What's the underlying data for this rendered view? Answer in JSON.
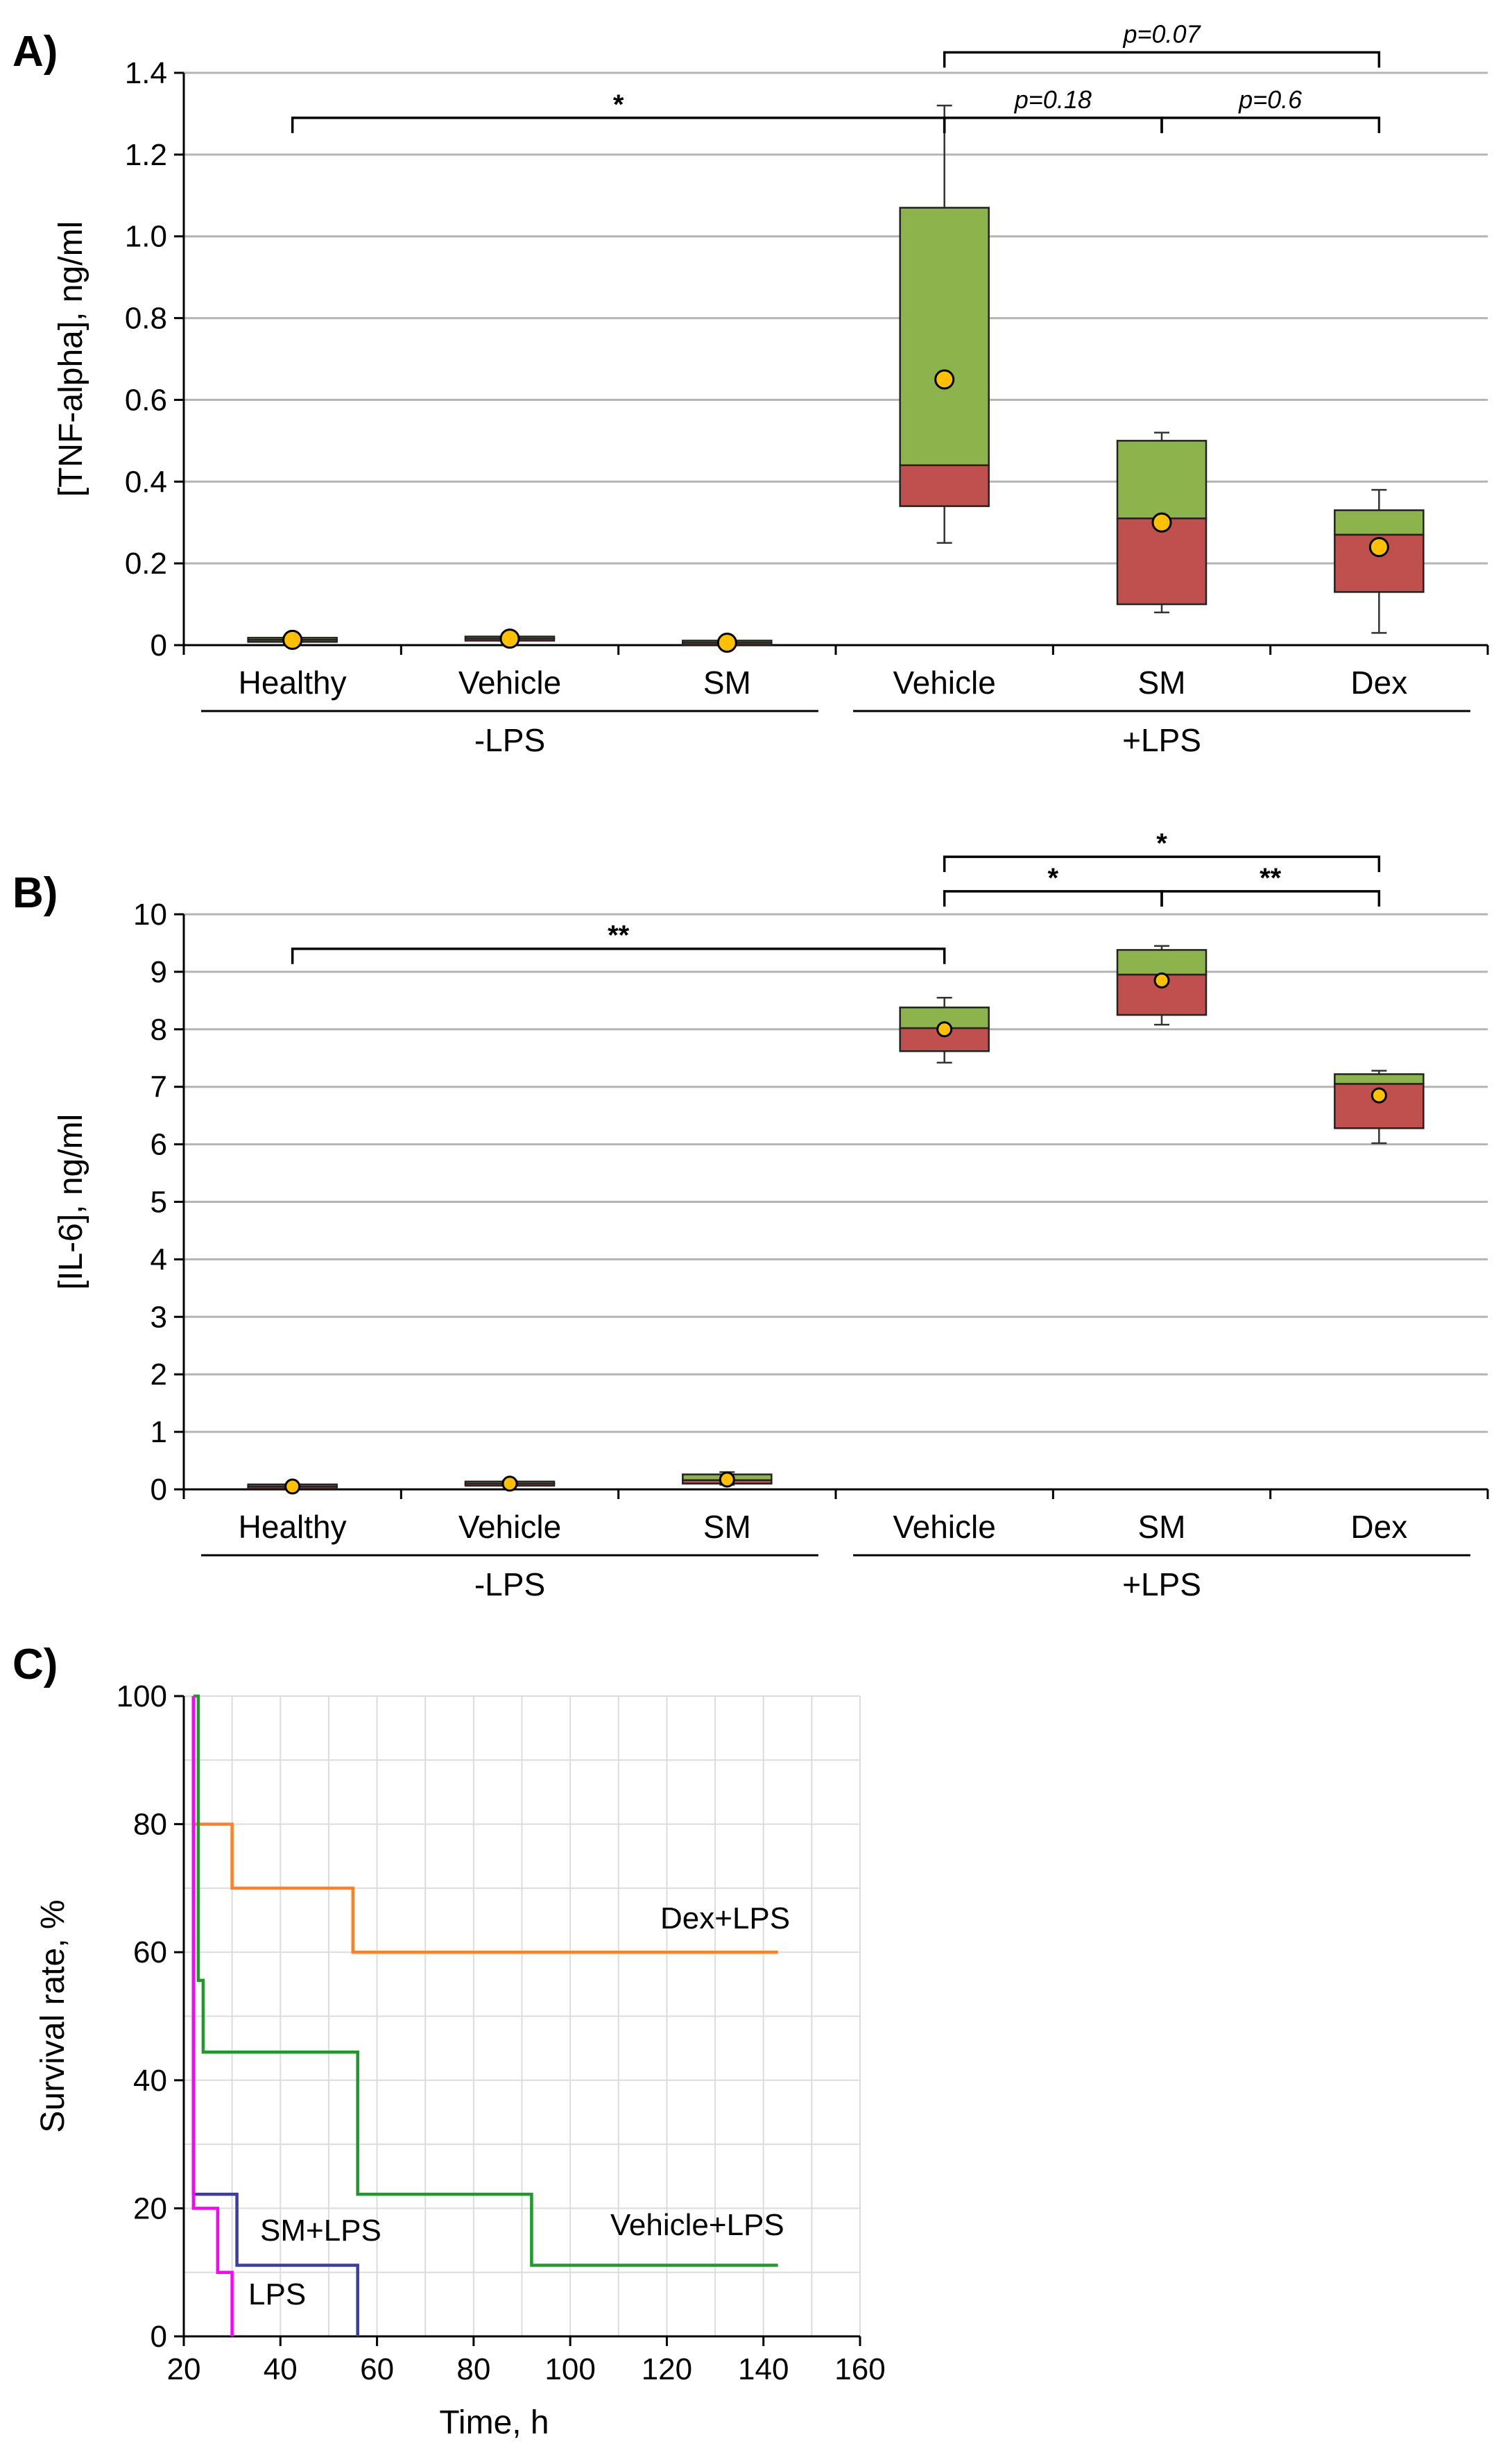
{
  "chart_data": [
    {
      "panel": "A)",
      "type": "box",
      "ylabel": "[TNF-alpha], ng/ml",
      "ylim": [
        0,
        1.4
      ],
      "yticks": [
        "0",
        "0.2",
        "0.4",
        "0.6",
        "0.8",
        "1.0",
        "1.2",
        "1.4"
      ],
      "categories": [
        "Healthy",
        "Vehicle",
        "SM",
        "Vehicle",
        "SM",
        "Dex"
      ],
      "groups": [
        {
          "label": "-LPS",
          "members": [
            0,
            1,
            2
          ]
        },
        {
          "label": "+LPS",
          "members": [
            3,
            4,
            5
          ]
        }
      ],
      "boxes": [
        {
          "min": 0.01,
          "q1": 0.01,
          "median": 0.013,
          "q3": 0.016,
          "max": 0.018,
          "mean": 0.013
        },
        {
          "min": 0.012,
          "q1": 0.012,
          "median": 0.016,
          "q3": 0.02,
          "max": 0.022,
          "mean": 0.016
        },
        {
          "min": 0.003,
          "q1": 0.003,
          "median": 0.006,
          "q3": 0.009,
          "max": 0.01,
          "mean": 0.006
        },
        {
          "min": 0.25,
          "q1": 0.34,
          "median": 0.44,
          "q3": 1.07,
          "max": 1.32,
          "mean": 0.65
        },
        {
          "min": 0.08,
          "q1": 0.1,
          "median": 0.31,
          "q3": 0.5,
          "max": 0.52,
          "mean": 0.3
        },
        {
          "min": 0.03,
          "q1": 0.13,
          "median": 0.27,
          "q3": 0.33,
          "max": 0.38,
          "mean": 0.24
        }
      ],
      "comparisons": [
        {
          "from": 0,
          "to": 3,
          "level": 1.29,
          "label": "*"
        },
        {
          "from": 3,
          "to": 4,
          "level": 1.29,
          "label": "p=0.18"
        },
        {
          "from": 4,
          "to": 5,
          "level": 1.29,
          "label": "p=0.6"
        },
        {
          "from": 3,
          "to": 5,
          "level": 1.45,
          "label": "p=0.07"
        }
      ]
    },
    {
      "panel": "B)",
      "type": "box",
      "ylabel": "[IL-6], ng/ml",
      "ylim": [
        0,
        10
      ],
      "yticks": [
        "0",
        "1",
        "2",
        "3",
        "4",
        "5",
        "6",
        "7",
        "8",
        "9",
        "10"
      ],
      "categories": [
        "Healthy",
        "Vehicle",
        "SM",
        "Vehicle",
        "SM",
        "Dex"
      ],
      "groups": [
        {
          "label": "-LPS",
          "members": [
            0,
            1,
            2
          ]
        },
        {
          "label": "+LPS",
          "members": [
            3,
            4,
            5
          ]
        }
      ],
      "boxes": [
        {
          "min": 0.02,
          "q1": 0.03,
          "median": 0.05,
          "q3": 0.07,
          "max": 0.08,
          "mean": 0.05
        },
        {
          "min": 0.06,
          "q1": 0.07,
          "median": 0.1,
          "q3": 0.13,
          "max": 0.15,
          "mean": 0.1
        },
        {
          "min": 0.08,
          "q1": 0.1,
          "median": 0.16,
          "q3": 0.26,
          "max": 0.3,
          "mean": 0.17
        },
        {
          "min": 7.42,
          "q1": 7.62,
          "median": 8.02,
          "q3": 8.38,
          "max": 8.55,
          "mean": 8.0
        },
        {
          "min": 8.08,
          "q1": 8.25,
          "median": 8.95,
          "q3": 9.38,
          "max": 9.45,
          "mean": 8.85
        },
        {
          "min": 6.02,
          "q1": 6.28,
          "median": 7.05,
          "q3": 7.22,
          "max": 7.28,
          "mean": 6.85
        }
      ],
      "comparisons": [
        {
          "from": 0,
          "to": 3,
          "level": 9.4,
          "label": "**"
        },
        {
          "from": 3,
          "to": 4,
          "level": 10.4,
          "label": "*"
        },
        {
          "from": 4,
          "to": 5,
          "level": 10.4,
          "label": "**"
        },
        {
          "from": 3,
          "to": 5,
          "level": 11.0,
          "label": "*"
        }
      ]
    },
    {
      "panel": "C)",
      "type": "line",
      "xlabel": "Time, h",
      "ylabel": "Survival rate, %",
      "xlim": [
        20,
        160
      ],
      "ylim": [
        0,
        100
      ],
      "xticks": [
        "20",
        "40",
        "60",
        "80",
        "100",
        "120",
        "140",
        "160"
      ],
      "yticks": [
        "0",
        "20",
        "40",
        "60",
        "80",
        "100"
      ],
      "series": [
        {
          "name": "Dex+LPS",
          "color": "#ff7f27",
          "x": [
            22,
            22,
            30,
            30,
            55,
            55,
            143
          ],
          "y": [
            100,
            80,
            80,
            70,
            70,
            60,
            60
          ]
        },
        {
          "name": "Vehicle+LPS",
          "color": "#1e9a2a",
          "x": [
            22,
            23,
            23,
            24,
            24,
            56,
            56,
            92,
            92,
            143
          ],
          "y": [
            100,
            100,
            55.6,
            55.6,
            44.4,
            44.4,
            22.2,
            22.2,
            11.1,
            11.1
          ]
        },
        {
          "name": "SM+LPS",
          "color": "#3c3ca6",
          "x": [
            22,
            22,
            31,
            31,
            56,
            56
          ],
          "y": [
            100,
            22.2,
            22.2,
            11.1,
            11.1,
            0
          ]
        },
        {
          "name": "LPS",
          "color": "#ff00ff",
          "x": [
            22,
            22,
            24,
            24,
            27,
            27,
            30,
            30
          ],
          "y": [
            100,
            20,
            20,
            20,
            20,
            10,
            10,
            0
          ]
        }
      ]
    }
  ]
}
